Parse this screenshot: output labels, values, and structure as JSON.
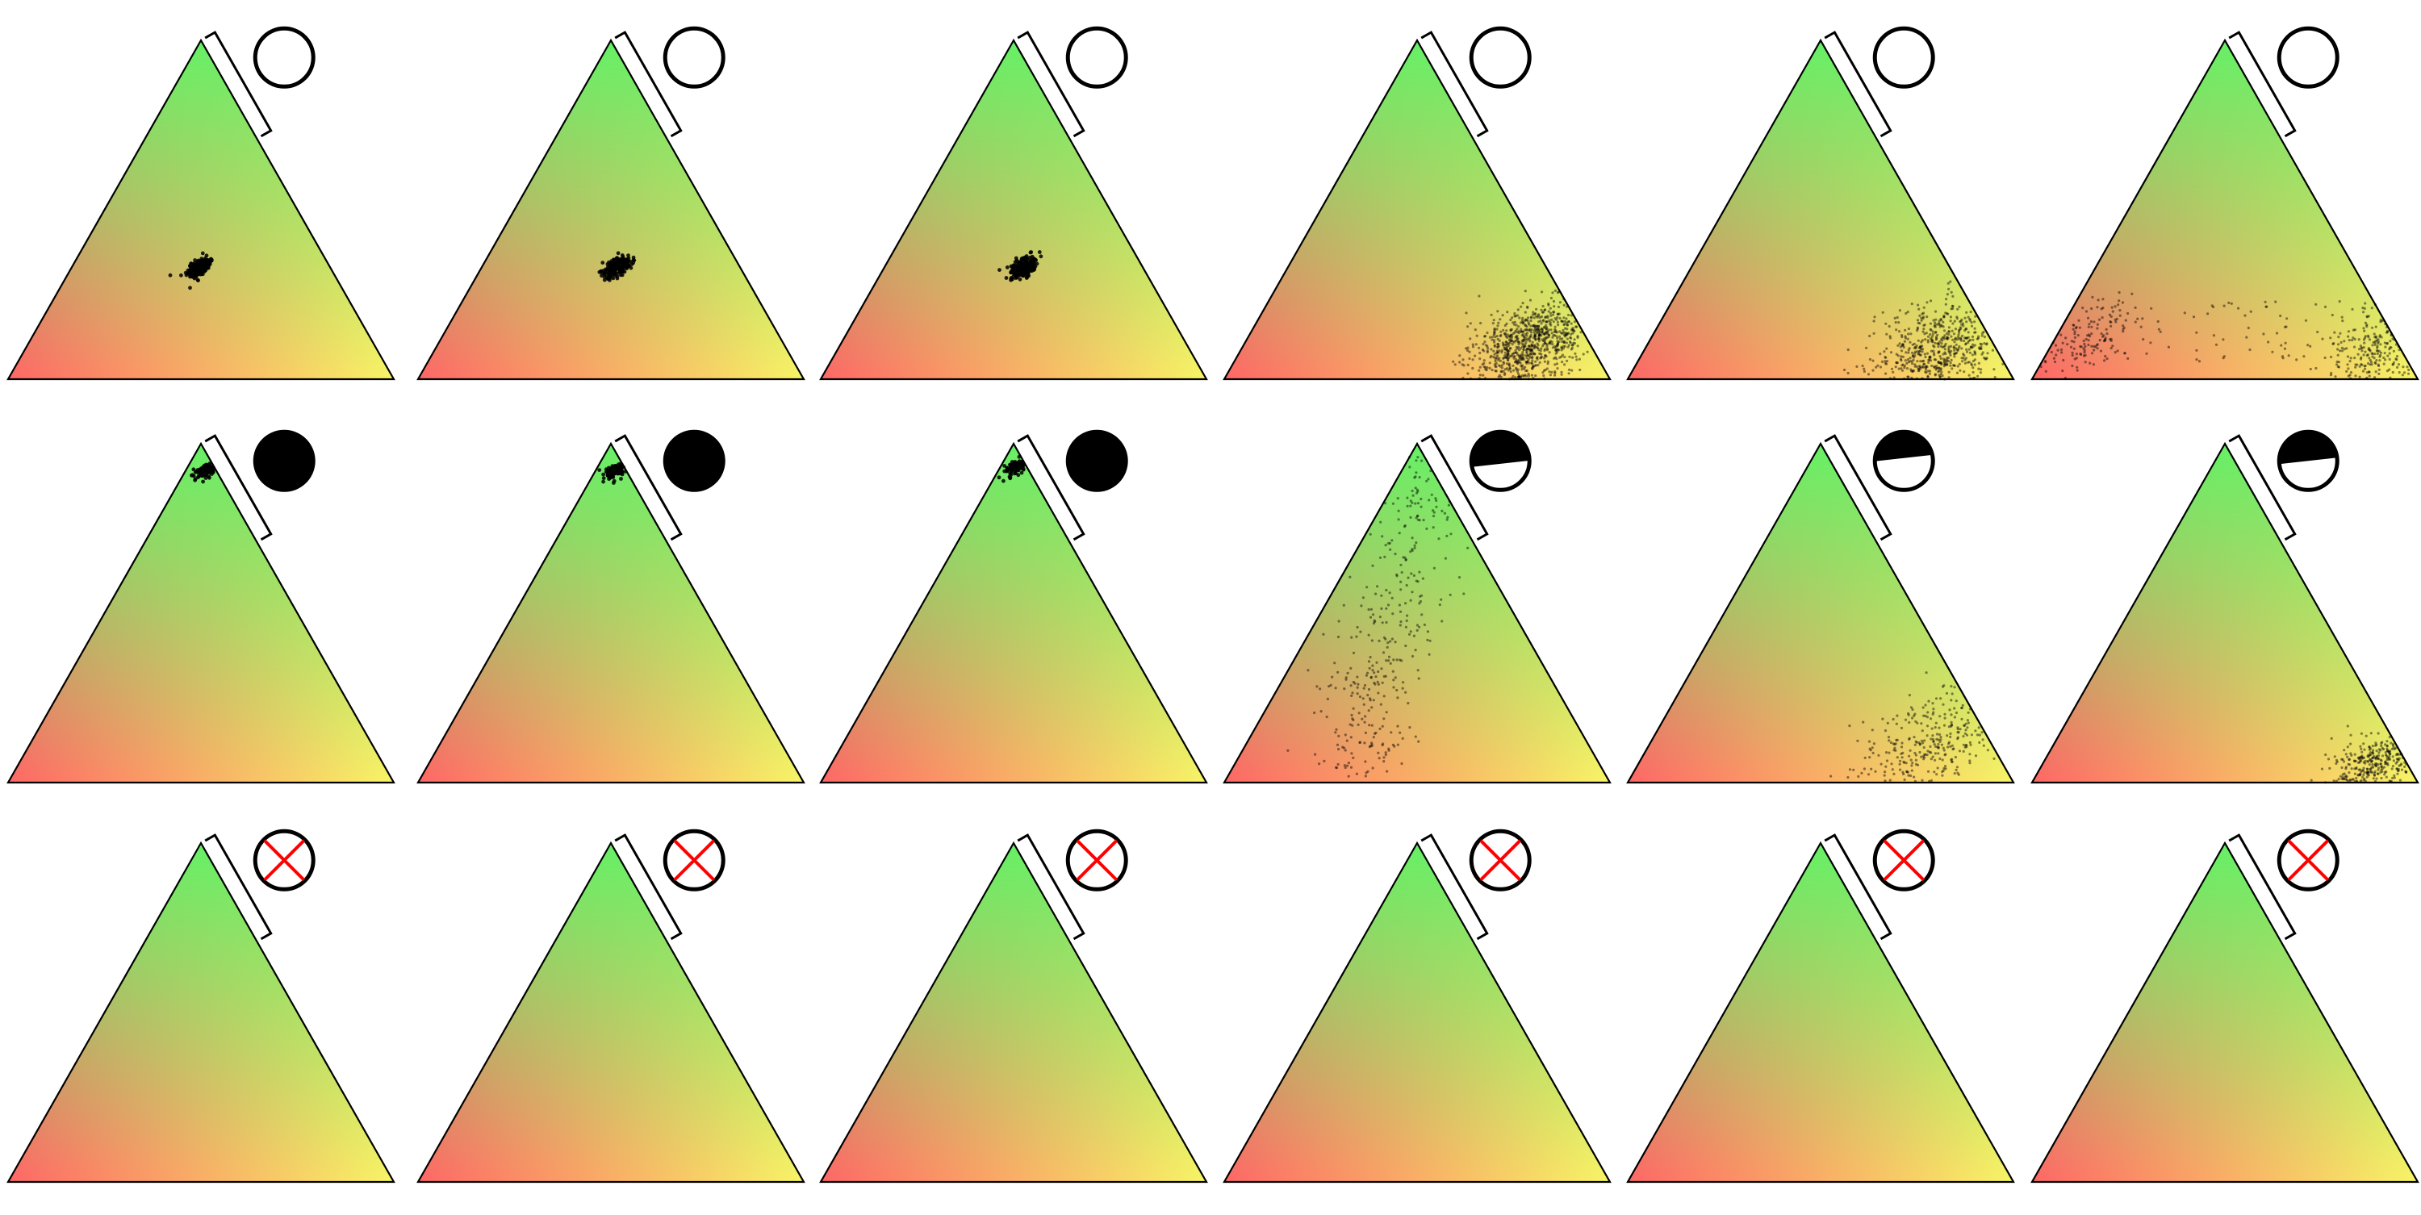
{
  "colors": {
    "vertex_top": "#66f066",
    "vertex_left": "#ff6666",
    "vertex_right": "#f8f466",
    "edge": "#000000",
    "scatter": "#000000",
    "cross": "#ff0000"
  },
  "rows": [
    {
      "indicator": "empty-circle-icon",
      "panels": [
        {
          "fill": 0.0,
          "cluster": {
            "shape": "tight",
            "a": 0.33,
            "b": 0.33,
            "spread": 0.015,
            "count": 220
          }
        },
        {
          "fill": 0.0,
          "cluster": {
            "shape": "tight",
            "a": 0.33,
            "b": 0.35,
            "spread": 0.015,
            "count": 220
          }
        },
        {
          "fill": 0.0,
          "cluster": {
            "shape": "tight",
            "a": 0.33,
            "b": 0.36,
            "spread": 0.015,
            "count": 220
          }
        },
        {
          "fill": 0.0,
          "cluster": {
            "shape": "diffuse",
            "a": 0.1,
            "b": 0.74,
            "spread": 0.07,
            "count": 900
          }
        },
        {
          "fill": 0.0,
          "cluster": {
            "shape": "diffuse",
            "a": 0.08,
            "b": 0.76,
            "spread": 0.08,
            "count": 700
          }
        },
        {
          "fill": 0.0,
          "cluster": {
            "shape": "bimodal",
            "a": 0.08,
            "b": 0.85,
            "spread": 0.08,
            "count": 550
          }
        }
      ]
    },
    {
      "indicator": "half-filled-circle-icon",
      "panels": [
        {
          "fill": 1.0,
          "cluster": {
            "shape": "tight",
            "a": 0.92,
            "b": 0.05,
            "spread": 0.012,
            "count": 90
          }
        },
        {
          "fill": 1.0,
          "cluster": {
            "shape": "tight",
            "a": 0.92,
            "b": 0.05,
            "spread": 0.012,
            "count": 90
          }
        },
        {
          "fill": 1.0,
          "cluster": {
            "shape": "tight",
            "a": 0.93,
            "b": 0.04,
            "spread": 0.012,
            "count": 90
          }
        },
        {
          "fill": 0.55,
          "cluster": {
            "shape": "streak",
            "a": 0.5,
            "b": 0.3,
            "spread": 0.06,
            "count": 380
          }
        },
        {
          "fill": 0.45,
          "cluster": {
            "shape": "diffuse",
            "a": 0.12,
            "b": 0.72,
            "spread": 0.08,
            "count": 320
          }
        },
        {
          "fill": 0.5,
          "cluster": {
            "shape": "diffuse",
            "a": 0.05,
            "b": 0.86,
            "spread": 0.05,
            "count": 380
          }
        }
      ]
    },
    {
      "indicator": "crossed-circle-icon",
      "panels": [
        {
          "fill": 0.0,
          "cluster": null
        },
        {
          "fill": 0.0,
          "cluster": null
        },
        {
          "fill": 0.0,
          "cluster": null
        },
        {
          "fill": 0.0,
          "cluster": null
        },
        {
          "fill": 0.0,
          "cluster": null
        },
        {
          "fill": 0.0,
          "cluster": null
        }
      ]
    }
  ]
}
